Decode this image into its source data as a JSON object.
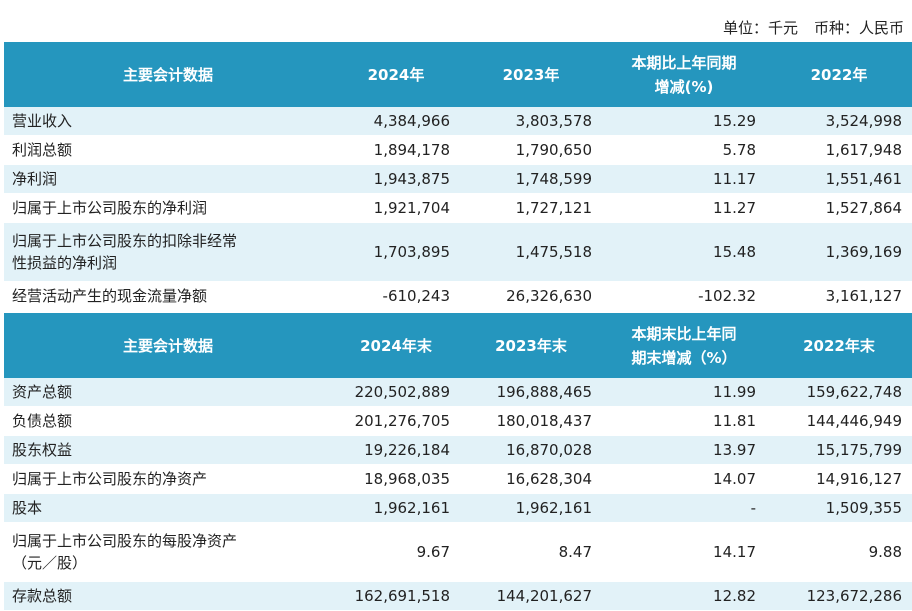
{
  "unit": {
    "unit_text": "单位：千元",
    "currency_text": "币种：人民币"
  },
  "table1": {
    "headers": [
      "主要会计数据",
      "2024年",
      "2023年",
      "本期比上年同期",
      "增减(%)",
      "2022年"
    ],
    "rows": [
      [
        "营业收入",
        "4,384,966",
        "3,803,578",
        "15.29",
        "3,524,998"
      ],
      [
        "利润总额",
        "1,894,178",
        "1,790,650",
        "5.78",
        "1,617,948"
      ],
      [
        "净利润",
        "1,943,875",
        "1,748,599",
        "11.17",
        "1,551,461"
      ],
      [
        "归属于上市公司股东的净利润",
        "1,921,704",
        "1,727,121",
        "11.27",
        "1,527,864"
      ],
      [
        "归属于上市公司股东的扣除非经常",
        "性损益的净利润",
        "1,703,895",
        "1,475,518",
        "15.48",
        "1,369,169"
      ],
      [
        "经营活动产生的现金流量净额",
        "-610,243",
        "26,326,630",
        "-102.32",
        "3,161,127"
      ]
    ]
  },
  "table2": {
    "headers": [
      "主要会计数据",
      "2024年末",
      "2023年末",
      "本期末比上年同",
      "期末增减（%）",
      "2022年末"
    ],
    "rows": [
      [
        "资产总额",
        "220,502,889",
        "196,888,465",
        "11.99",
        "159,622,748"
      ],
      [
        "负债总额",
        "201,276,705",
        "180,018,437",
        "11.81",
        "144,446,949"
      ],
      [
        "股东权益",
        "19,226,184",
        "16,870,028",
        "13.97",
        "15,175,799"
      ],
      [
        "归属于上市公司股东的净资产",
        "18,968,035",
        "16,628,304",
        "14.07",
        "14,916,127"
      ],
      [
        "股本",
        "1,962,161",
        "1,962,161",
        "-",
        "1,509,355"
      ],
      [
        "归属于上市公司股东的每股净资产",
        "（元／股）",
        "9.67",
        "8.47",
        "14.17",
        "9.88"
      ],
      [
        "存款总额",
        "162,691,518",
        "144,201,627",
        "12.82",
        "123,672,286"
      ]
    ]
  }
}
